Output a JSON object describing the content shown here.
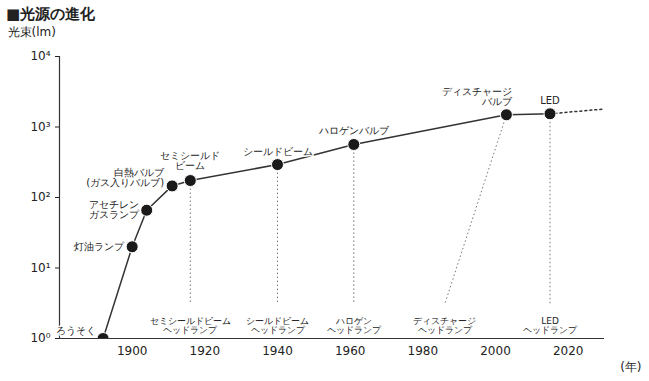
{
  "chart_data": {
    "type": "line",
    "title": "■光源の進化",
    "y_label": "光束(lm)",
    "x_label": "(年)",
    "log": "y",
    "grid": false,
    "marker": "circle",
    "line_style": "solid",
    "color": "#333333",
    "x": [
      1892,
      1900,
      1904,
      1911,
      1916,
      1940,
      1961,
      2003,
      2015
    ],
    "values": [
      1,
      20,
      66,
      146,
      174,
      293,
      565,
      1490,
      1540
    ],
    "point_labels": [
      [
        "ろうそく"
      ],
      [
        "灯油ランプ"
      ],
      [
        "アセチレン",
        "ガスランプ"
      ],
      [
        "白熱バルブ",
        "(ガス入りバルブ)"
      ],
      [
        "セミシールド",
        "ビーム"
      ],
      [
        "シールドビーム"
      ],
      [
        "ハロゲンバルブ"
      ],
      [
        "ディスチャージ",
        "バルブ"
      ],
      [
        "LED"
      ]
    ],
    "lamps": [
      null,
      null,
      null,
      null,
      {
        "x": 1916,
        "label": [
          "セミシールドビーム",
          "ヘッドランプ"
        ]
      },
      {
        "x": 1940,
        "label": [
          "シールドビーム",
          "ヘッドランプ"
        ]
      },
      {
        "x": 1961,
        "label": [
          "ハロゲン",
          "ヘッドランプ"
        ]
      },
      {
        "x": 1986,
        "label": [
          "ディスチャージ",
          "ヘッドランプ"
        ]
      },
      {
        "x": 2015,
        "label": [
          "LED",
          "ヘッドランプ"
        ]
      }
    ],
    "extension": {
      "x": [
        2030
      ],
      "values": [
        1800
      ],
      "line_style": "dotted"
    },
    "xlim": [
      1880,
      2030
    ],
    "xticks": [
      1900,
      1920,
      1940,
      1960,
      1980,
      2000,
      2020
    ],
    "ylim": [
      1,
      10000
    ],
    "yticks": [
      {
        "value": 1,
        "label": "10⁰"
      },
      {
        "value": 10,
        "label": "10¹"
      },
      {
        "value": 100,
        "label": "10²"
      },
      {
        "value": 1000,
        "label": "10³"
      },
      {
        "value": 10000,
        "label": "10⁴"
      }
    ]
  }
}
